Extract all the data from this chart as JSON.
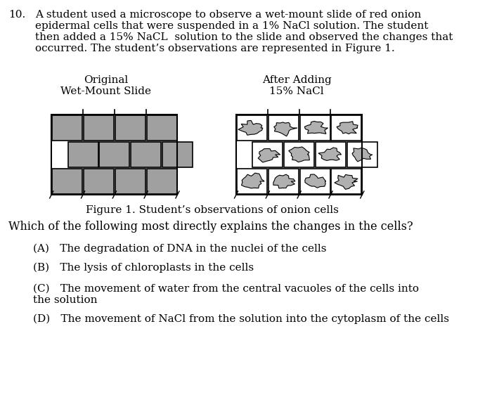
{
  "background_color": "#ffffff",
  "question_number": "10.",
  "question_text": "A student used a microscope to observe a wet-mount slide of red onion\nepidermal cells that were suspended in a 1% NaCl solution. The student\nthen added a 15% NaCL  solution to the slide and observed the changes that\noccurred. The student’s observations are represented in Figure 1.",
  "label_left": "Original\nWet-Mount Slide",
  "label_right": "After Adding\n15% NaCl",
  "figure_caption": "Figure 1. Student’s observations of onion cells",
  "question_stem": "Which of the following most directly explains the changes in the cells?",
  "choices": [
    "(A) The degradation of DNA in the nuclei of the cells",
    "(B) The lysis of chloroplasts in the cells",
    "(C) The movement of water from the central vacuoles of the cells into\n        the solution",
    "(D) The movement of NaCl from the solution into the cytoplasm of the cells"
  ],
  "cell_fill_full": "#a0a0a0",
  "cell_fill_shrunk": "#b0b0b0",
  "cell_outline": "#000000",
  "font_family": "serif",
  "text_color": "#000000"
}
